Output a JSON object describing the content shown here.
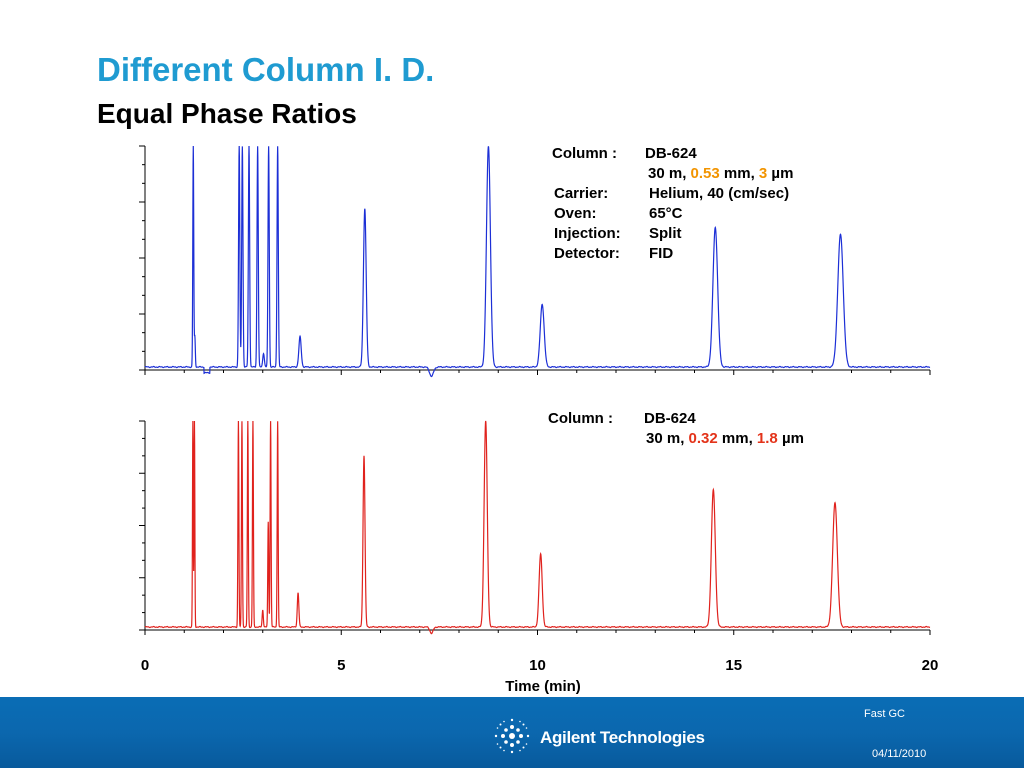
{
  "slide": {
    "title": "Different Column I. D.",
    "subtitle": "Equal Phase Ratios"
  },
  "panel1_info": {
    "column_label": "Column :",
    "column_value": "DB-624",
    "dim_prefix": "30 m, ",
    "id_value": "0.53",
    "dim_mid": " mm, ",
    "film_value": "3",
    "dim_suffix": " µm",
    "carrier_label": "Carrier:",
    "carrier_value": "Helium, 40 (cm/sec)",
    "oven_label": "Oven:",
    "oven_value": "65°C",
    "injection_label": "Injection:",
    "injection_value": "Split",
    "detector_label": "Detector:",
    "detector_value": "FID"
  },
  "panel2_info": {
    "column_label": "Column :",
    "column_value": "DB-624",
    "dim_prefix": "30 m, ",
    "id_value": "0.32",
    "dim_mid": " mm, ",
    "film_value": "1.8",
    "dim_suffix": " µm"
  },
  "chart_data": [
    {
      "type": "line",
      "name": "0.53 mm column",
      "color": "#1c2fd6",
      "xlabel": "Time (min)",
      "xlim": [
        0,
        20
      ],
      "ylim": [
        0,
        100
      ],
      "baseline": 5,
      "peaks": [
        {
          "t": 1.23,
          "h": 100,
          "w": 0.012
        },
        {
          "t": 1.27,
          "h": 18,
          "w": 0.012
        },
        {
          "t": 2.4,
          "h": 100,
          "w": 0.016
        },
        {
          "t": 2.48,
          "h": 100,
          "w": 0.016
        },
        {
          "t": 2.65,
          "h": 100,
          "w": 0.016
        },
        {
          "t": 2.87,
          "h": 100,
          "w": 0.016
        },
        {
          "t": 3.02,
          "h": 11,
          "w": 0.02
        },
        {
          "t": 3.15,
          "h": 100,
          "w": 0.016
        },
        {
          "t": 3.38,
          "h": 100,
          "w": 0.016
        },
        {
          "t": 3.95,
          "h": 18,
          "w": 0.03
        },
        {
          "t": 5.6,
          "h": 73,
          "w": 0.035
        },
        {
          "t": 7.3,
          "h": 1,
          "w": 0.05
        },
        {
          "t": 8.75,
          "h": 100,
          "w": 0.05
        },
        {
          "t": 10.12,
          "h": 32,
          "w": 0.05
        },
        {
          "t": 14.53,
          "h": 65,
          "w": 0.06
        },
        {
          "t": 17.72,
          "h": 62,
          "w": 0.07
        }
      ]
    },
    {
      "type": "line",
      "name": "0.32 mm column",
      "color": "#e0221d",
      "xlabel": "Time (min)",
      "xlim": [
        0,
        20
      ],
      "ylim": [
        0,
        100
      ],
      "baseline": 4,
      "peaks": [
        {
          "t": 1.22,
          "h": 100,
          "w": 0.01
        },
        {
          "t": 1.26,
          "h": 100,
          "w": 0.01
        },
        {
          "t": 2.38,
          "h": 100,
          "w": 0.012
        },
        {
          "t": 2.47,
          "h": 100,
          "w": 0.012
        },
        {
          "t": 2.62,
          "h": 100,
          "w": 0.012
        },
        {
          "t": 2.75,
          "h": 100,
          "w": 0.012
        },
        {
          "t": 3.0,
          "h": 12,
          "w": 0.015
        },
        {
          "t": 3.14,
          "h": 53,
          "w": 0.012
        },
        {
          "t": 3.2,
          "h": 100,
          "w": 0.012
        },
        {
          "t": 3.38,
          "h": 100,
          "w": 0.012
        },
        {
          "t": 3.9,
          "h": 20,
          "w": 0.02
        },
        {
          "t": 5.58,
          "h": 84,
          "w": 0.025
        },
        {
          "t": 7.3,
          "h": 1,
          "w": 0.04
        },
        {
          "t": 8.68,
          "h": 100,
          "w": 0.04
        },
        {
          "t": 10.08,
          "h": 38,
          "w": 0.04
        },
        {
          "t": 14.48,
          "h": 68,
          "w": 0.05
        },
        {
          "t": 17.58,
          "h": 62,
          "w": 0.06
        }
      ],
      "x_ticks": [
        0,
        5,
        10,
        15,
        20
      ]
    }
  ],
  "footer": {
    "section": "Fast GC",
    "brand": "Agilent Technologies",
    "date": "04/11/2010",
    "background": "#0b67ae"
  }
}
